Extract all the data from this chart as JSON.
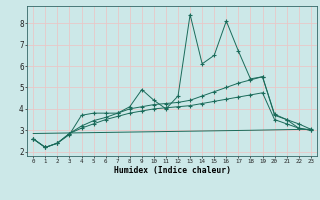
{
  "xlabel": "Humidex (Indice chaleur)",
  "ylabel": "",
  "background_color": "#cce8e8",
  "grid_color": "#e8c8c8",
  "line_color": "#1a6b5a",
  "xlim": [
    -0.5,
    23.5
  ],
  "ylim": [
    1.8,
    8.8
  ],
  "yticks": [
    2,
    3,
    4,
    5,
    6,
    7,
    8
  ],
  "xticks": [
    0,
    1,
    2,
    3,
    4,
    5,
    6,
    7,
    8,
    9,
    10,
    11,
    12,
    13,
    14,
    15,
    16,
    17,
    18,
    19,
    20,
    21,
    22,
    23
  ],
  "series1_x": [
    0,
    1,
    2,
    3,
    4,
    5,
    6,
    7,
    8,
    9,
    10,
    11,
    12,
    13,
    14,
    15,
    16,
    17,
    18,
    19,
    20,
    21,
    22,
    23
  ],
  "series1_y": [
    2.6,
    2.2,
    2.4,
    2.8,
    3.7,
    3.8,
    3.8,
    3.8,
    4.1,
    4.9,
    4.4,
    4.0,
    4.6,
    8.4,
    6.1,
    6.5,
    8.1,
    6.7,
    5.4,
    5.5,
    3.7,
    3.5,
    3.1,
    3.0
  ],
  "series2_x": [
    0,
    1,
    2,
    3,
    4,
    5,
    6,
    7,
    8,
    9,
    10,
    11,
    12,
    13,
    14,
    15,
    16,
    17,
    18,
    19,
    20,
    21,
    22,
    23
  ],
  "series2_y": [
    2.6,
    2.2,
    2.4,
    2.85,
    3.2,
    3.45,
    3.6,
    3.8,
    4.0,
    4.1,
    4.2,
    4.25,
    4.3,
    4.4,
    4.6,
    4.8,
    5.0,
    5.2,
    5.35,
    5.5,
    3.75,
    3.5,
    3.3,
    3.05
  ],
  "series3_x": [
    0,
    1,
    2,
    3,
    4,
    5,
    6,
    7,
    8,
    9,
    10,
    11,
    12,
    13,
    14,
    15,
    16,
    17,
    18,
    19,
    20,
    21,
    22,
    23
  ],
  "series3_y": [
    2.6,
    2.2,
    2.4,
    2.85,
    3.1,
    3.3,
    3.5,
    3.65,
    3.8,
    3.9,
    4.0,
    4.05,
    4.1,
    4.15,
    4.25,
    4.35,
    4.45,
    4.55,
    4.65,
    4.75,
    3.5,
    3.3,
    3.1,
    3.0
  ],
  "series4_x": [
    0,
    18,
    23
  ],
  "series4_y": [
    2.85,
    3.0,
    3.05
  ]
}
